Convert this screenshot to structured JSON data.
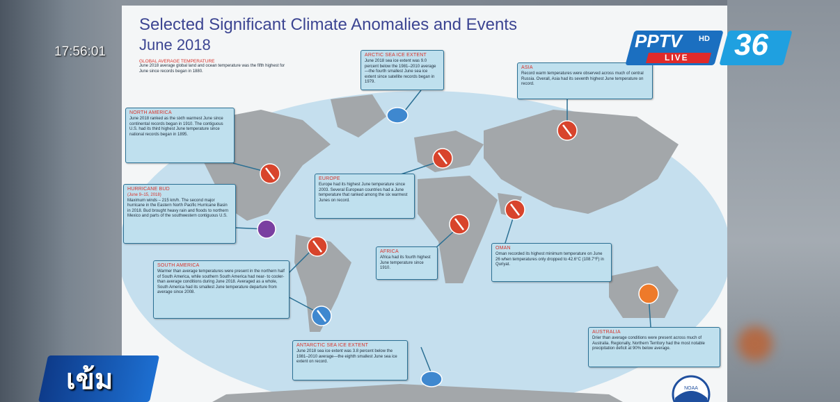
{
  "broadcast": {
    "time": "17:56:01",
    "channel": "PPTV",
    "hd": "HD",
    "number": "36",
    "live": "LIVE",
    "program": "เข้ม"
  },
  "poster": {
    "title": "Selected Significant Climate Anomalies and Events",
    "subtitle": "June 2018",
    "logo": "NOAA",
    "global": {
      "heading": "GLOBAL AVERAGE TEMPERATURE",
      "text": "June 2018 average global land and ocean temperature was the fifth highest for June since records began in 1880."
    },
    "boxes": [
      {
        "heading": "ARCTIC SEA ICE EXTENT",
        "text": "June 2018 sea ice extent was 9.0 percent below the 1981–2010 average—the fourth smallest June sea ice extent since satellite records began in 1979."
      },
      {
        "heading": "ASIA",
        "text": "Record warm temperatures were observed across much of central Russia. Overall, Asia had its seventh highest June temperature on record."
      },
      {
        "heading": "NORTH AMERICA",
        "text": "June 2018 ranked as the sixth warmest June since continental records began in 1910. The contiguous U.S. had its third highest June temperature since national records began in 1895."
      },
      {
        "heading": "HURRICANE BUD",
        "dates": "(June 9–15, 2018)",
        "text": "Maximum winds – 215 km/h. The second major hurricane in the Eastern North Pacific Hurricane Basin in 2018. Bud brought heavy rain and floods to northern Mexico and parts of the southwestern contiguous U.S."
      },
      {
        "heading": "EUROPE",
        "text": "Europe had its highest June temperature since 2003. Several European countries had a June temperature that ranked among the six warmest Junes on record."
      },
      {
        "heading": "SOUTH AMERICA",
        "text": "Warmer than average temperatures were present in the northern half of South America, while southern South America had near- to cooler-than average conditions during June 2018. Averaged as a whole, South America had its smallest June temperature departure from average since 2008."
      },
      {
        "heading": "AFRICA",
        "text": "Africa had its fourth highest June temperature since 1910."
      },
      {
        "heading": "OMAN",
        "text": "Oman recorded its highest minimum temperature on June 26 when temperatures only dropped to 42.6°C (108.7°F) in Quriyat."
      },
      {
        "heading": "AUSTRALIA",
        "text": "Drier than average conditions were present across much of Australia. Regionally, Northern Territory had the most notable precipitation deficit at 90% below average."
      },
      {
        "heading": "ANTARCTIC SEA ICE EXTENT",
        "text": "June 2018 sea ice extent was 3.8 percent below the 1981–2010 average—the eighth smallest June sea ice extent on record."
      }
    ]
  }
}
